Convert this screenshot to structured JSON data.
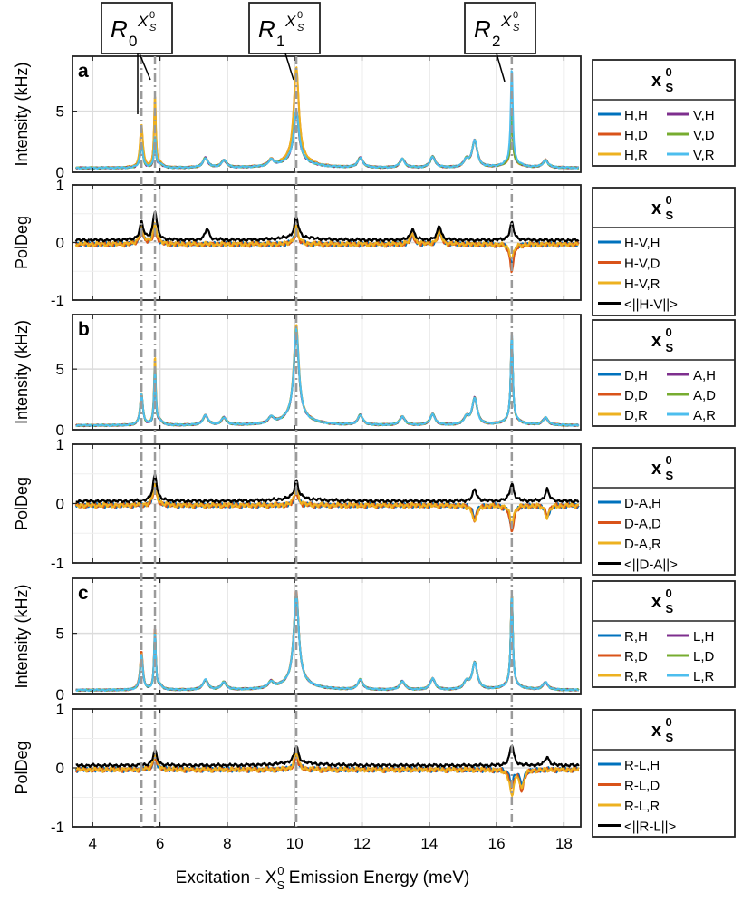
{
  "figure": {
    "xlabel": "Excitation - X",
    "xlabel_sub": "S",
    "xlabel_sup": "0",
    "xlabel_rest": " Emission Energy (meV)"
  },
  "markers": [
    {
      "label": "R",
      "sub": "0",
      "sup_base": "X",
      "sup_sub": "S",
      "sup_sup": "0",
      "x": 5.45
    },
    {
      "label": "R",
      "sub": "1",
      "sup_base": "X",
      "sup_sub": "S",
      "sup_sup": "0",
      "x": 10.05
    },
    {
      "label": "R",
      "sub": "2",
      "sup_base": "X",
      "sup_sub": "S",
      "sup_sup": "0",
      "x": 16.45
    }
  ],
  "marker_lines_x": [
    5.45,
    5.85,
    10.05,
    16.45
  ],
  "colors": {
    "blue": "#0072BD",
    "orange": "#D95319",
    "yellow": "#EDB120",
    "purple": "#7E2F8E",
    "green": "#77AC30",
    "cyan": "#4DBEEE",
    "black": "#000000"
  },
  "chart_data": [
    {
      "type": "line",
      "panel_label": "a",
      "kind": "intensity",
      "ylabel": "Intensity (kHz)",
      "ylim": [
        0,
        9.5
      ],
      "yticks": [
        0,
        5
      ],
      "xlim": [
        3.4,
        18.5
      ],
      "legend_title_base": "x",
      "legend_title_sub": "S",
      "legend_title_sup": "0",
      "legend": [
        "H,H",
        "V,H",
        "H,D",
        "V,D",
        "H,R",
        "V,R"
      ],
      "legend_colors": [
        "blue",
        "purple",
        "orange",
        "green",
        "yellow",
        "cyan"
      ],
      "baseline": 0.35,
      "series": [
        {
          "name": "H,H",
          "color": "blue",
          "peak_scale": [
            2.0,
            2.6,
            4.0,
            4.4
          ]
        },
        {
          "name": "H,D",
          "color": "orange",
          "peak_scale": [
            3.4,
            5.8,
            7.5,
            4.0
          ]
        },
        {
          "name": "H,R",
          "color": "yellow",
          "peak_scale": [
            3.6,
            6.2,
            7.7,
            4.0
          ]
        },
        {
          "name": "V,H",
          "color": "purple",
          "peak_scale": [
            1.8,
            2.4,
            3.9,
            4.3
          ]
        },
        {
          "name": "V,D",
          "color": "green",
          "peak_scale": [
            1.9,
            2.5,
            4.1,
            4.2
          ]
        },
        {
          "name": "V,R",
          "color": "cyan",
          "peak_scale": [
            2.0,
            2.7,
            4.2,
            8.1
          ]
        }
      ],
      "extra_peaks": [
        [
          6.0,
          0.3
        ],
        [
          7.35,
          0.8
        ],
        [
          7.9,
          0.6
        ],
        [
          9.3,
          0.5
        ],
        [
          11.95,
          0.8
        ],
        [
          13.2,
          0.7
        ],
        [
          14.1,
          0.9
        ],
        [
          15.35,
          2.2
        ],
        [
          15.1,
          0.6
        ],
        [
          17.45,
          0.6
        ]
      ]
    },
    {
      "type": "line",
      "panel_label": "",
      "kind": "poldeg",
      "ylabel": "PolDeg",
      "ylim": [
        -1,
        1
      ],
      "yticks": [
        -1,
        0,
        1
      ],
      "xlim": [
        3.4,
        18.5
      ],
      "legend_title_base": "x",
      "legend_title_sub": "S",
      "legend_title_sup": "0",
      "legend": [
        "H-V,H",
        "H-V,D",
        "H-V,R",
        "<||H-V||>"
      ],
      "legend_colors": [
        "blue",
        "orange",
        "yellow",
        "black"
      ],
      "series": [
        {
          "name": "H-V,H",
          "color": "blue",
          "bumps": [
            [
              5.45,
              0.25
            ],
            [
              5.85,
              0.3
            ],
            [
              10.05,
              0.25
            ],
            [
              13.5,
              0.15
            ],
            [
              14.3,
              0.2
            ],
            [
              16.45,
              -0.35
            ]
          ]
        },
        {
          "name": "H-V,D",
          "color": "orange",
          "bumps": [
            [
              5.45,
              0.2
            ],
            [
              5.85,
              0.25
            ],
            [
              10.05,
              0.2
            ],
            [
              13.5,
              0.15
            ],
            [
              14.3,
              0.2
            ],
            [
              16.45,
              -0.45
            ]
          ]
        },
        {
          "name": "H-V,R",
          "color": "yellow",
          "bumps": [
            [
              5.45,
              0.3
            ],
            [
              5.85,
              0.35
            ],
            [
              10.05,
              0.3
            ],
            [
              13.5,
              0.2
            ],
            [
              14.3,
              0.25
            ],
            [
              16.45,
              -0.25
            ]
          ]
        },
        {
          "name": "<||H-V||>",
          "color": "black",
          "bumps": [
            [
              5.45,
              0.3
            ],
            [
              5.85,
              0.5
            ],
            [
              7.4,
              0.2
            ],
            [
              10.05,
              0.35
            ],
            [
              13.5,
              0.2
            ],
            [
              14.3,
              0.25
            ],
            [
              16.45,
              0.3
            ]
          ]
        }
      ]
    },
    {
      "type": "line",
      "panel_label": "b",
      "kind": "intensity",
      "ylabel": "Intensity (kHz)",
      "ylim": [
        0,
        9.5
      ],
      "yticks": [
        0,
        5
      ],
      "xlim": [
        3.4,
        18.5
      ],
      "legend_title_base": "x",
      "legend_title_sub": "S",
      "legend_title_sup": "0",
      "legend": [
        "D,H",
        "A,H",
        "D,D",
        "A,D",
        "D,R",
        "A,R"
      ],
      "legend_colors": [
        "blue",
        "purple",
        "orange",
        "green",
        "yellow",
        "cyan"
      ],
      "baseline": 0.35,
      "series": [
        {
          "name": "D,H",
          "color": "blue",
          "peak_scale": [
            2.5,
            4.5,
            7.0,
            7.0
          ]
        },
        {
          "name": "D,D",
          "color": "orange",
          "peak_scale": [
            2.6,
            5.5,
            7.5,
            7.2
          ]
        },
        {
          "name": "D,R",
          "color": "yellow",
          "peak_scale": [
            2.7,
            6.0,
            7.8,
            7.3
          ]
        },
        {
          "name": "A,H",
          "color": "purple",
          "peak_scale": [
            2.4,
            4.8,
            7.1,
            7.0
          ]
        },
        {
          "name": "A,D",
          "color": "green",
          "peak_scale": [
            2.5,
            5.0,
            7.2,
            7.1
          ]
        },
        {
          "name": "A,R",
          "color": "cyan",
          "peak_scale": [
            2.6,
            5.2,
            7.4,
            7.5
          ]
        }
      ],
      "extra_peaks": [
        [
          6.0,
          0.3
        ],
        [
          7.35,
          0.8
        ],
        [
          7.9,
          0.6
        ],
        [
          9.3,
          0.5
        ],
        [
          11.95,
          0.8
        ],
        [
          13.2,
          0.7
        ],
        [
          14.1,
          0.9
        ],
        [
          15.35,
          2.2
        ],
        [
          15.1,
          0.6
        ],
        [
          17.45,
          0.6
        ]
      ]
    },
    {
      "type": "line",
      "panel_label": "",
      "kind": "poldeg",
      "ylabel": "PolDeg",
      "ylim": [
        -1,
        1
      ],
      "yticks": [
        -1,
        0,
        1
      ],
      "xlim": [
        3.4,
        18.5
      ],
      "legend_title_base": "x",
      "legend_title_sub": "S",
      "legend_title_sup": "0",
      "legend": [
        "D-A,H",
        "D-A,D",
        "D-A,R",
        "<||D-A||>"
      ],
      "legend_colors": [
        "blue",
        "orange",
        "yellow",
        "black"
      ],
      "series": [
        {
          "name": "D-A,H",
          "color": "blue",
          "bumps": [
            [
              5.85,
              0.3
            ],
            [
              10.05,
              0.25
            ],
            [
              15.35,
              -0.2
            ],
            [
              16.45,
              -0.4
            ],
            [
              17.5,
              -0.2
            ]
          ]
        },
        {
          "name": "D-A,D",
          "color": "orange",
          "bumps": [
            [
              5.85,
              0.25
            ],
            [
              10.05,
              0.2
            ],
            [
              15.35,
              -0.25
            ],
            [
              16.45,
              -0.45
            ],
            [
              17.5,
              -0.15
            ]
          ]
        },
        {
          "name": "D-A,R",
          "color": "yellow",
          "bumps": [
            [
              5.85,
              0.35
            ],
            [
              10.05,
              0.3
            ],
            [
              15.35,
              -0.3
            ],
            [
              16.45,
              -0.3
            ],
            [
              17.5,
              -0.2
            ]
          ]
        },
        {
          "name": "<||D-A||>",
          "color": "black",
          "bumps": [
            [
              5.85,
              0.45
            ],
            [
              10.05,
              0.3
            ],
            [
              15.35,
              0.2
            ],
            [
              16.45,
              0.3
            ],
            [
              17.5,
              0.2
            ]
          ]
        }
      ]
    },
    {
      "type": "line",
      "panel_label": "c",
      "kind": "intensity",
      "ylabel": "Intensity (kHz)",
      "ylim": [
        0,
        9.5
      ],
      "yticks": [
        0,
        5
      ],
      "xlim": [
        3.4,
        18.5
      ],
      "legend_title_base": "x",
      "legend_title_sub": "S",
      "legend_title_sup": "0",
      "legend": [
        "R,H",
        "L,H",
        "R,D",
        "L,D",
        "R,R",
        "L,R"
      ],
      "legend_colors": [
        "blue",
        "purple",
        "orange",
        "green",
        "yellow",
        "cyan"
      ],
      "baseline": 0.35,
      "series": [
        {
          "name": "R,H",
          "color": "blue",
          "peak_scale": [
            2.8,
            4.9,
            7.2,
            7.6
          ]
        },
        {
          "name": "R,D",
          "color": "orange",
          "peak_scale": [
            3.2,
            5.3,
            7.5,
            7.8
          ]
        },
        {
          "name": "R,R",
          "color": "yellow",
          "peak_scale": [
            3.0,
            5.0,
            7.3,
            7.7
          ]
        },
        {
          "name": "L,H",
          "color": "purple",
          "peak_scale": [
            2.6,
            4.7,
            7.0,
            7.5
          ]
        },
        {
          "name": "L,D",
          "color": "green",
          "peak_scale": [
            2.7,
            4.8,
            7.1,
            7.9
          ]
        },
        {
          "name": "L,R",
          "color": "cyan",
          "peak_scale": [
            2.8,
            4.9,
            7.2,
            7.6
          ]
        }
      ],
      "extra_peaks": [
        [
          6.0,
          0.3
        ],
        [
          7.35,
          0.8
        ],
        [
          7.9,
          0.6
        ],
        [
          9.3,
          0.5
        ],
        [
          11.95,
          0.8
        ],
        [
          13.2,
          0.7
        ],
        [
          14.1,
          0.9
        ],
        [
          15.35,
          2.2
        ],
        [
          15.1,
          0.6
        ],
        [
          17.45,
          0.6
        ]
      ]
    },
    {
      "type": "line",
      "panel_label": "",
      "kind": "poldeg",
      "ylabel": "PolDeg",
      "ylim": [
        -1,
        1
      ],
      "yticks": [
        -1,
        0,
        1
      ],
      "xlim": [
        3.4,
        18.5
      ],
      "xticks": [
        4,
        6,
        8,
        10,
        12,
        14,
        16,
        18
      ],
      "legend_title_base": "x",
      "legend_title_sub": "S",
      "legend_title_sup": "0",
      "legend": [
        "R-L,H",
        "R-L,D",
        "R-L,R",
        "<||R-L||>"
      ],
      "legend_colors": [
        "blue",
        "orange",
        "yellow",
        "black"
      ],
      "series": [
        {
          "name": "R-L,H",
          "color": "blue",
          "bumps": [
            [
              5.85,
              0.2
            ],
            [
              10.05,
              0.25
            ],
            [
              16.45,
              -0.2
            ],
            [
              16.75,
              -0.25
            ]
          ]
        },
        {
          "name": "R-L,D",
          "color": "orange",
          "bumps": [
            [
              5.85,
              0.2
            ],
            [
              10.05,
              0.2
            ],
            [
              16.45,
              -0.3
            ],
            [
              16.75,
              -0.35
            ]
          ]
        },
        {
          "name": "R-L,R",
          "color": "yellow",
          "bumps": [
            [
              5.85,
              0.25
            ],
            [
              10.05,
              0.3
            ],
            [
              16.45,
              -0.45
            ],
            [
              16.75,
              -0.3
            ]
          ]
        },
        {
          "name": "<||R-L||>",
          "color": "black",
          "bumps": [
            [
              5.85,
              0.25
            ],
            [
              10.05,
              0.28
            ],
            [
              16.45,
              0.35
            ],
            [
              17.5,
              0.15
            ]
          ]
        }
      ]
    }
  ]
}
